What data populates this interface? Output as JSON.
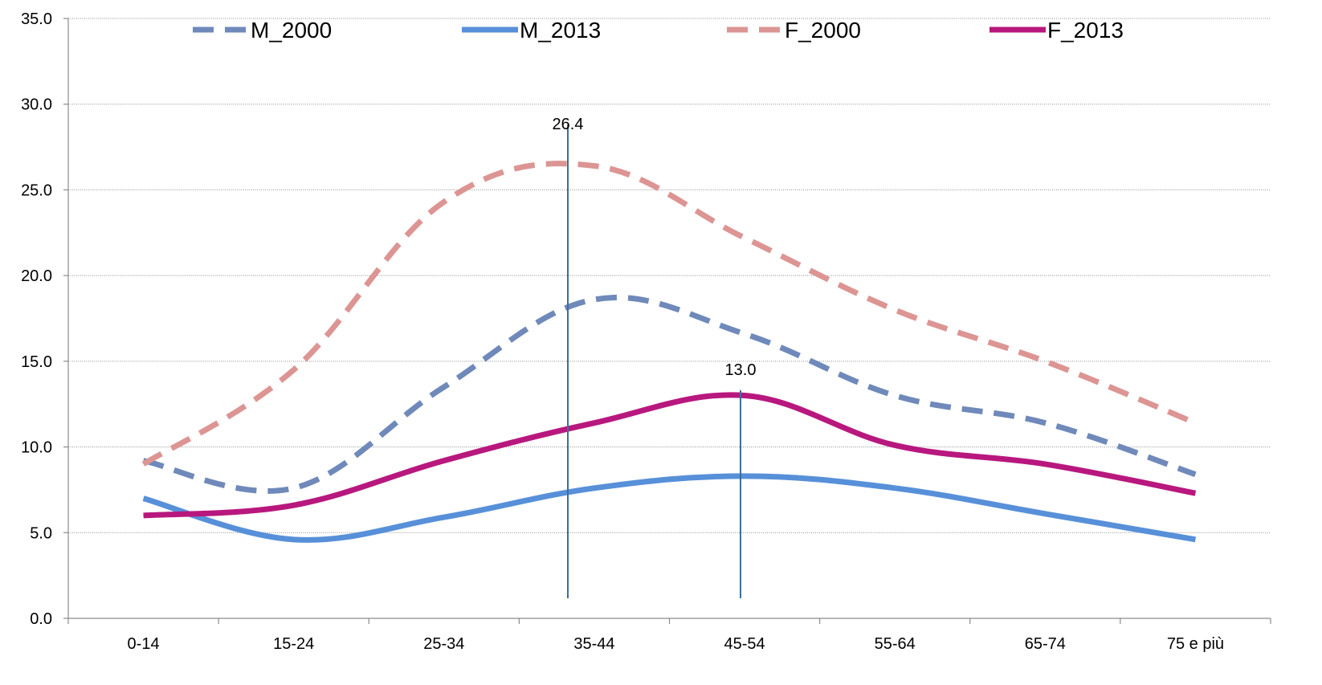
{
  "chart_data": {
    "type": "line",
    "title": "",
    "xlabel": "",
    "ylabel": "",
    "categories": [
      "0-14",
      "15-24",
      "25-34",
      "35-44",
      "45-54",
      "55-64",
      "65-74",
      "75 e più"
    ],
    "ylim": [
      0,
      35
    ],
    "yticks": [
      "0.0",
      "5.0",
      "10.0",
      "15.0",
      "20.0",
      "25.0",
      "30.0",
      "35.0"
    ],
    "grid": true,
    "legend_position": "top",
    "series": [
      {
        "name": "M_2000",
        "values": [
          9.2,
          7.6,
          13.5,
          18.6,
          16.6,
          13.0,
          11.4,
          8.4
        ],
        "color": "#6f89ba",
        "dash": true
      },
      {
        "name": "M_2013",
        "values": [
          7.0,
          4.6,
          5.9,
          7.6,
          8.3,
          7.6,
          6.1,
          4.6
        ],
        "color": "#5790d9",
        "dash": false
      },
      {
        "name": "F_2000",
        "values": [
          9.0,
          14.5,
          24.3,
          26.4,
          22.2,
          18.0,
          15.0,
          11.4
        ],
        "color": "#dc9593",
        "dash": true
      },
      {
        "name": "F_2013",
        "values": [
          6.0,
          6.6,
          9.2,
          11.4,
          13.0,
          10.1,
          9.0,
          7.3
        ],
        "color": "#b8187e",
        "dash": false
      }
    ],
    "annotations": [
      {
        "text": "26.4",
        "category": "35-44",
        "value": 26.4
      },
      {
        "text": "13.0",
        "category": "45-54",
        "value": 13.0
      }
    ]
  }
}
